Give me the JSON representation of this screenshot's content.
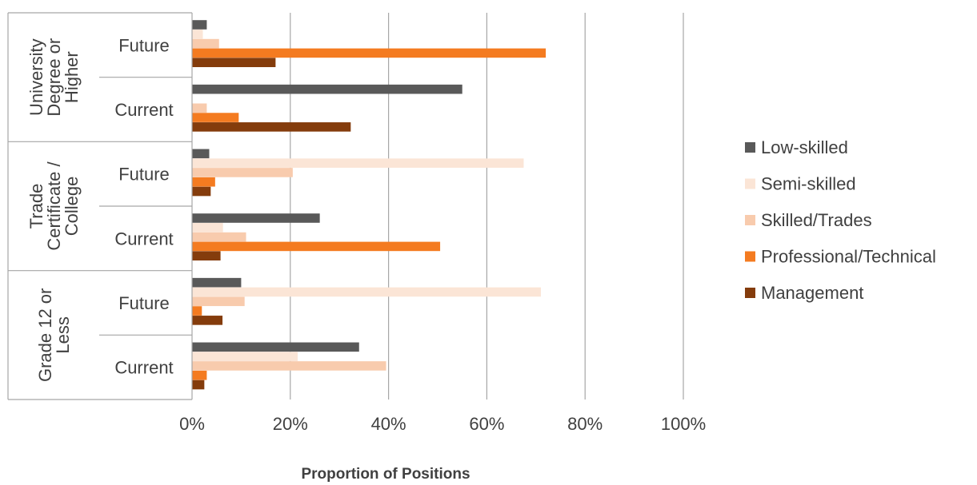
{
  "chart_data": {
    "type": "bar",
    "orientation": "horizontal",
    "xlabel": "Proportion of Positions",
    "xlim": [
      0,
      100
    ],
    "x_ticks": [
      "0%",
      "20%",
      "40%",
      "60%",
      "80%",
      "100%"
    ],
    "grid": true,
    "legend_position": "right",
    "groups": [
      {
        "label": "University Degree or Higher",
        "lines": [
          "University",
          "Degree or",
          "Higher"
        ],
        "subcategories": [
          "Future",
          "Current"
        ]
      },
      {
        "label": "Trade Certificate / College",
        "lines": [
          "Trade",
          "Certificate /",
          "College"
        ],
        "subcategories": [
          "Future",
          "Current"
        ]
      },
      {
        "label": "Grade 12 or Less",
        "lines": [
          "Grade 12 or",
          "Less"
        ],
        "subcategories": [
          "Future",
          "Current"
        ]
      }
    ],
    "categories": [
      "University Degree or Higher - Future",
      "University Degree or Higher - Current",
      "Trade Certificate / College - Future",
      "Trade Certificate / College - Current",
      "Grade 12 or Less - Future",
      "Grade 12 or Less - Current"
    ],
    "series": [
      {
        "name": "Low-skilled",
        "color": "#595959",
        "values": [
          3,
          55,
          3.5,
          26,
          10,
          34
        ]
      },
      {
        "name": "Semi-skilled",
        "color": "#FBE5D6",
        "values": [
          2.2,
          0,
          67.5,
          6.3,
          71,
          21.5
        ]
      },
      {
        "name": "Skilled/Trades",
        "color": "#F8CBAD",
        "values": [
          5.5,
          3,
          20.5,
          11,
          10.7,
          39.5
        ]
      },
      {
        "name": "Professional/Technical",
        "color": "#F47B20",
        "values": [
          72,
          9.5,
          4.7,
          50.5,
          2,
          3
        ]
      },
      {
        "name": "Management",
        "color": "#843C0C",
        "values": [
          17,
          32.3,
          3.8,
          5.8,
          6.2,
          2.5
        ]
      }
    ]
  }
}
